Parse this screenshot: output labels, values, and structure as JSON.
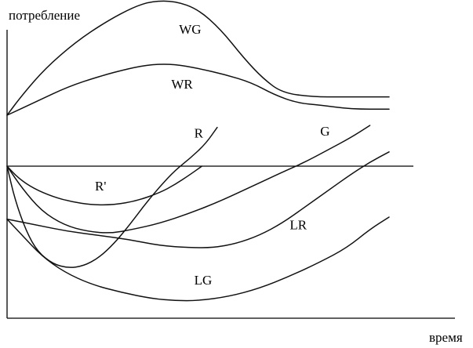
{
  "chart_data": {
    "type": "line",
    "ylabel": "потребление",
    "xlabel": "время",
    "x_range": [
      0,
      100
    ],
    "y_range": [
      -75,
      85
    ],
    "grid": false,
    "series": [
      {
        "name": "WG",
        "label_pos": {
          "x": 45,
          "y": 65
        },
        "points": [
          [
            0,
            25
          ],
          [
            4,
            35
          ],
          [
            10,
            48
          ],
          [
            18,
            61
          ],
          [
            26,
            71
          ],
          [
            33,
            78
          ],
          [
            38,
            81
          ],
          [
            44,
            81
          ],
          [
            50,
            77
          ],
          [
            56,
            67
          ],
          [
            62,
            53
          ],
          [
            67,
            43
          ],
          [
            72,
            36
          ],
          [
            80,
            34
          ],
          [
            88,
            34
          ],
          [
            100,
            34
          ]
        ]
      },
      {
        "name": "WR",
        "label_pos": {
          "x": 43,
          "y": 38
        },
        "points": [
          [
            0,
            25
          ],
          [
            8,
            32
          ],
          [
            16,
            39
          ],
          [
            24,
            44
          ],
          [
            32,
            48
          ],
          [
            38,
            50
          ],
          [
            44,
            50
          ],
          [
            50,
            48
          ],
          [
            57,
            45
          ],
          [
            64,
            41
          ],
          [
            70,
            35
          ],
          [
            76,
            31
          ],
          [
            82,
            30
          ],
          [
            90,
            28
          ],
          [
            100,
            28
          ]
        ]
      },
      {
        "name": "R",
        "label_pos": {
          "x": 49,
          "y": 14
        },
        "points": [
          [
            0,
            0
          ],
          [
            2,
            -16
          ],
          [
            5,
            -32
          ],
          [
            8,
            -42
          ],
          [
            12,
            -48
          ],
          [
            16,
            -50
          ],
          [
            20,
            -49
          ],
          [
            24,
            -45
          ],
          [
            28,
            -38
          ],
          [
            32,
            -29
          ],
          [
            36,
            -19
          ],
          [
            40,
            -10
          ],
          [
            44,
            -2
          ],
          [
            48,
            4
          ],
          [
            52,
            11
          ],
          [
            55,
            19
          ]
        ]
      },
      {
        "name": "R'",
        "label_pos": {
          "x": 23,
          "y": -12
        },
        "points": [
          [
            0,
            0
          ],
          [
            3,
            -6
          ],
          [
            7,
            -11
          ],
          [
            12,
            -15
          ],
          [
            17,
            -17.5
          ],
          [
            22,
            -19
          ],
          [
            28,
            -19
          ],
          [
            34,
            -17
          ],
          [
            40,
            -13
          ],
          [
            44,
            -9
          ],
          [
            48,
            -4
          ],
          [
            51,
            0
          ]
        ]
      },
      {
        "name": "G",
        "label_pos": {
          "x": 82,
          "y": 15
        },
        "points": [
          [
            0,
            0
          ],
          [
            4,
            -11
          ],
          [
            9,
            -22
          ],
          [
            15,
            -29
          ],
          [
            21,
            -32
          ],
          [
            27,
            -33
          ],
          [
            33,
            -31
          ],
          [
            40,
            -28
          ],
          [
            48,
            -23
          ],
          [
            56,
            -17
          ],
          [
            64,
            -10
          ],
          [
            72,
            -3
          ],
          [
            78,
            2
          ],
          [
            84,
            8
          ],
          [
            90,
            14
          ],
          [
            95,
            20
          ]
        ]
      },
      {
        "name": "LR",
        "label_pos": {
          "x": 74,
          "y": -31
        },
        "points": [
          [
            0,
            -26
          ],
          [
            8,
            -29
          ],
          [
            16,
            -32
          ],
          [
            24,
            -34
          ],
          [
            32,
            -36
          ],
          [
            40,
            -39
          ],
          [
            48,
            -40
          ],
          [
            54,
            -40
          ],
          [
            60,
            -38
          ],
          [
            66,
            -34
          ],
          [
            72,
            -28
          ],
          [
            78,
            -20
          ],
          [
            84,
            -12
          ],
          [
            90,
            -4
          ],
          [
            95,
            2
          ],
          [
            100,
            7
          ]
        ]
      },
      {
        "name": "LG",
        "label_pos": {
          "x": 49,
          "y": -58
        },
        "points": [
          [
            0,
            -26
          ],
          [
            4,
            -34
          ],
          [
            9,
            -44
          ],
          [
            15,
            -52
          ],
          [
            22,
            -58
          ],
          [
            30,
            -62
          ],
          [
            38,
            -65
          ],
          [
            44,
            -66
          ],
          [
            50,
            -66
          ],
          [
            58,
            -64
          ],
          [
            66,
            -60
          ],
          [
            74,
            -54
          ],
          [
            82,
            -47
          ],
          [
            89,
            -40
          ],
          [
            95,
            -31
          ],
          [
            100,
            -25
          ]
        ]
      }
    ]
  }
}
